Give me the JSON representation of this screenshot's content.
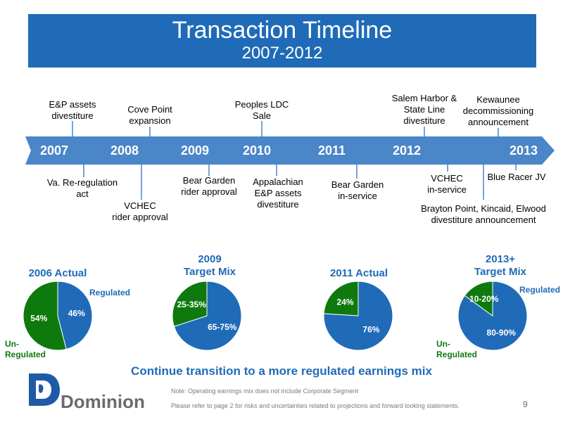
{
  "title": "Transaction Timeline",
  "subtitle": "2007-2012",
  "timeline": {
    "years": [
      "2007",
      "2008",
      "2009",
      "2010",
      "2011",
      "2012",
      "2013"
    ],
    "events_above": [
      {
        "text": [
          "E&P assets",
          "divestiture"
        ]
      },
      {
        "text": [
          "Cove Point",
          "expansion"
        ]
      },
      {
        "text": [
          "Peoples LDC",
          "Sale"
        ]
      },
      {
        "text": [
          "Salem Harbor &",
          "State Line",
          "divestiture"
        ]
      },
      {
        "text": [
          "Kewaunee",
          "decommissioning",
          "announcement"
        ]
      }
    ],
    "events_below": [
      {
        "text": [
          "Va. Re-regulation",
          "act"
        ]
      },
      {
        "text": [
          "VCHEC",
          "rider approval"
        ]
      },
      {
        "text": [
          "Bear Garden",
          "rider approval"
        ]
      },
      {
        "text": [
          "Appalachian",
          "E&P assets",
          "divestiture"
        ]
      },
      {
        "text": [
          "Bear Garden",
          "in-service"
        ]
      },
      {
        "text": [
          "VCHEC",
          "in-service"
        ]
      },
      {
        "text": [
          "Blue Racer JV"
        ]
      },
      {
        "text": [
          "Brayton Point, Kincaid, Elwood",
          "divestiture announcement"
        ]
      }
    ]
  },
  "chart_data": [
    {
      "type": "pie",
      "title": "2006 Actual",
      "slices": [
        {
          "label": "46%",
          "value": 46,
          "color": "#1f6bb8"
        },
        {
          "label": "54%",
          "value": 54,
          "color": "#0e7a0e"
        }
      ],
      "legend": [
        "Regulated",
        "Un-Regulated"
      ]
    },
    {
      "type": "pie",
      "title": "2009 Target Mix",
      "slices": [
        {
          "label": "65-75%",
          "value": 70,
          "color": "#1f6bb8"
        },
        {
          "label": "25-35%",
          "value": 30,
          "color": "#0e7a0e"
        }
      ]
    },
    {
      "type": "pie",
      "title": "2011 Actual",
      "slices": [
        {
          "label": "76%",
          "value": 76,
          "color": "#1f6bb8"
        },
        {
          "label": "24%",
          "value": 24,
          "color": "#0e7a0e"
        }
      ]
    },
    {
      "type": "pie",
      "title": "2013+ Target Mix",
      "slices": [
        {
          "label": "80-90%",
          "value": 85,
          "color": "#1f6bb8"
        },
        {
          "label": "10-20%",
          "value": 15,
          "color": "#0e7a0e"
        }
      ],
      "legend": [
        "Regulated",
        "Un-Regulated"
      ]
    }
  ],
  "pie_titles": [
    [
      "2006 Actual"
    ],
    [
      "2009",
      "Target Mix"
    ],
    [
      "2011 Actual"
    ],
    [
      "2013+",
      "Target Mix"
    ]
  ],
  "labels": {
    "regulated": "Regulated",
    "unregulated": [
      "Un-",
      "Regulated"
    ]
  },
  "tagline": "Continue transition to a more regulated earnings mix",
  "footnote1": "Note: Operating earnings mix does not include Corporate Segment",
  "footnote2": "Please refer to page 2 for risks and uncertainties related to projections and forward looking statements.",
  "logo": "Dominion",
  "page_number": "9",
  "colors": {
    "blue": "#1f6bb8",
    "green": "#0e7a0e",
    "arrow": "#4a86c8"
  }
}
